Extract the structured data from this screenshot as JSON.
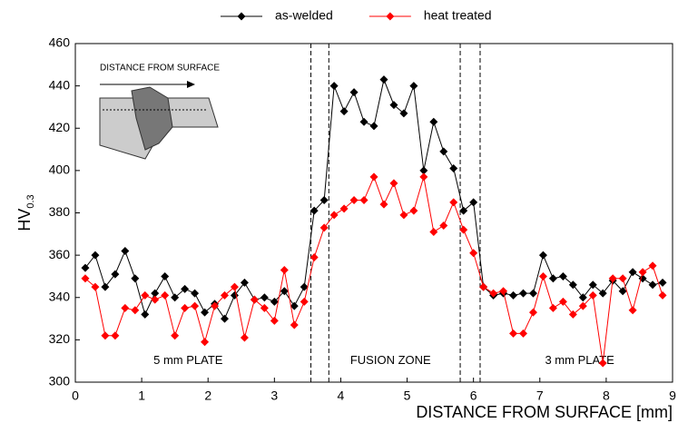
{
  "chart_data": {
    "type": "line",
    "x_label": "DISTANCE FROM SURFACE [mm]",
    "y_label": "HV",
    "y_label_subscript": "0.3",
    "x": [
      0.15,
      0.3,
      0.45,
      0.6,
      0.75,
      0.9,
      1.05,
      1.2,
      1.35,
      1.5,
      1.65,
      1.8,
      1.95,
      2.1,
      2.25,
      2.4,
      2.55,
      2.7,
      2.85,
      3.0,
      3.15,
      3.3,
      3.45,
      3.6,
      3.75,
      3.9,
      4.05,
      4.2,
      4.35,
      4.5,
      4.65,
      4.8,
      4.95,
      5.1,
      5.25,
      5.4,
      5.55,
      5.7,
      5.85,
      6.0,
      6.15,
      6.3,
      6.45,
      6.6,
      6.75,
      6.9,
      7.05,
      7.2,
      7.35,
      7.5,
      7.65,
      7.8,
      7.95,
      8.1,
      8.25,
      8.4,
      8.55,
      8.7,
      8.85
    ],
    "series": [
      {
        "name": "as-welded",
        "color": "#000000",
        "values": [
          354,
          360,
          345,
          351,
          362,
          349,
          332,
          342,
          350,
          340,
          344,
          342,
          333,
          337,
          330,
          341,
          347,
          339,
          340,
          338,
          343,
          336,
          345,
          381,
          386,
          440,
          428,
          437,
          423,
          421,
          443,
          431,
          427,
          440,
          400,
          423,
          409,
          401,
          381,
          385,
          345,
          341,
          342,
          341,
          342,
          342,
          360,
          349,
          350,
          346,
          340,
          346,
          342,
          348,
          343,
          352,
          349,
          346,
          347
        ]
      },
      {
        "name": "heat treated",
        "color": "#ff0000",
        "values": [
          349,
          345,
          322,
          322,
          335,
          334,
          341,
          339,
          341,
          322,
          335,
          336,
          319,
          336,
          341,
          345,
          321,
          339,
          335,
          329,
          353,
          327,
          338,
          359,
          373,
          379,
          382,
          386,
          386,
          397,
          384,
          394,
          379,
          381,
          397,
          371,
          374,
          385,
          372,
          361,
          345,
          342,
          343,
          323,
          323,
          333,
          350,
          335,
          338,
          332,
          336,
          341,
          309,
          349,
          349,
          334,
          352,
          355,
          341
        ]
      }
    ],
    "xlim": [
      0,
      9
    ],
    "xticks": [
      0,
      1,
      2,
      3,
      4,
      5,
      6,
      7,
      8,
      9
    ],
    "ylim": [
      300,
      460
    ],
    "yticks": [
      300,
      320,
      340,
      360,
      380,
      400,
      420,
      440,
      460
    ],
    "vlines": [
      3.55,
      3.82,
      5.8,
      6.1
    ],
    "annotations": [
      {
        "text": "5 mm PLATE",
        "x": 1.7,
        "y": 310
      },
      {
        "text": "FUSION ZONE",
        "x": 4.75,
        "y": 310
      },
      {
        "text": "3 mm PLATE",
        "x": 7.6,
        "y": 310
      }
    ],
    "inset_label": "DISTANCE FROM SURFACE",
    "legend": "top"
  }
}
